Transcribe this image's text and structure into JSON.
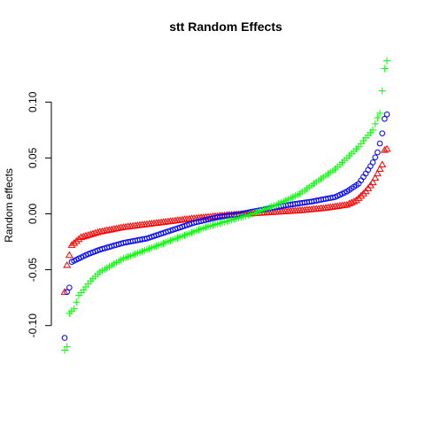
{
  "chart_data": {
    "type": "scatter",
    "title": "stt Random Effects",
    "xlabel": "",
    "ylabel": "Random effects",
    "ylim": [
      -0.12,
      0.13
    ],
    "yticks": [
      -0.1,
      -0.05,
      0.0,
      0.05,
      0.1
    ],
    "ytick_labels": [
      "-0.10",
      "-0.05",
      "0.00",
      "0.05",
      "0.10"
    ],
    "grid": false,
    "x_axis_shown": false,
    "box": false,
    "series": [
      {
        "color": "#ff0000",
        "marker": "triangle",
        "anchors": [
          [
            0,
            -0.07
          ],
          [
            1,
            -0.046
          ],
          [
            3,
            -0.028
          ],
          [
            7,
            -0.021
          ],
          [
            15,
            -0.016
          ],
          [
            25,
            -0.012
          ],
          [
            40,
            -0.008
          ],
          [
            55,
            -0.004
          ],
          [
            70,
            -0.001
          ],
          [
            85,
            0.001
          ],
          [
            100,
            0.003
          ],
          [
            110,
            0.005
          ],
          [
            120,
            0.008
          ],
          [
            124,
            0.012
          ],
          [
            128,
            0.02
          ],
          [
            131,
            0.028
          ],
          [
            133,
            0.036
          ],
          [
            135,
            0.044
          ],
          [
            136,
            0.057
          ],
          [
            137,
            0.058
          ]
        ]
      },
      {
        "color": "#0000ff",
        "marker": "circle",
        "anchors": [
          [
            0,
            -0.111
          ],
          [
            1,
            -0.07
          ],
          [
            2,
            -0.066
          ],
          [
            3,
            -0.043
          ],
          [
            6,
            -0.04
          ],
          [
            10,
            -0.036
          ],
          [
            15,
            -0.032
          ],
          [
            20,
            -0.029
          ],
          [
            25,
            -0.026
          ],
          [
            35,
            -0.022
          ],
          [
            45,
            -0.015
          ],
          [
            55,
            -0.008
          ],
          [
            65,
            -0.003
          ],
          [
            75,
            0.0
          ],
          [
            85,
            0.004
          ],
          [
            95,
            0.008
          ],
          [
            105,
            0.011
          ],
          [
            115,
            0.015
          ],
          [
            120,
            0.02
          ],
          [
            125,
            0.027
          ],
          [
            128,
            0.036
          ],
          [
            131,
            0.046
          ],
          [
            133,
            0.055
          ],
          [
            134,
            0.063
          ],
          [
            135,
            0.072
          ],
          [
            136,
            0.085
          ],
          [
            137,
            0.089
          ]
        ]
      },
      {
        "color": "#00ff00",
        "marker": "plus",
        "anchors": [
          [
            0,
            -0.122
          ],
          [
            1,
            -0.119
          ],
          [
            2,
            -0.089
          ],
          [
            4,
            -0.085
          ],
          [
            6,
            -0.073
          ],
          [
            8,
            -0.068
          ],
          [
            11,
            -0.06
          ],
          [
            15,
            -0.052
          ],
          [
            20,
            -0.046
          ],
          [
            25,
            -0.04
          ],
          [
            30,
            -0.036
          ],
          [
            40,
            -0.028
          ],
          [
            50,
            -0.02
          ],
          [
            60,
            -0.012
          ],
          [
            70,
            -0.006
          ],
          [
            80,
            0.0
          ],
          [
            90,
            0.008
          ],
          [
            100,
            0.018
          ],
          [
            108,
            0.03
          ],
          [
            115,
            0.04
          ],
          [
            120,
            0.05
          ],
          [
            125,
            0.06
          ],
          [
            128,
            0.068
          ],
          [
            131,
            0.075
          ],
          [
            133,
            0.086
          ],
          [
            134,
            0.09
          ],
          [
            135,
            0.11
          ],
          [
            136,
            0.13
          ],
          [
            137,
            0.137
          ]
        ]
      }
    ]
  }
}
